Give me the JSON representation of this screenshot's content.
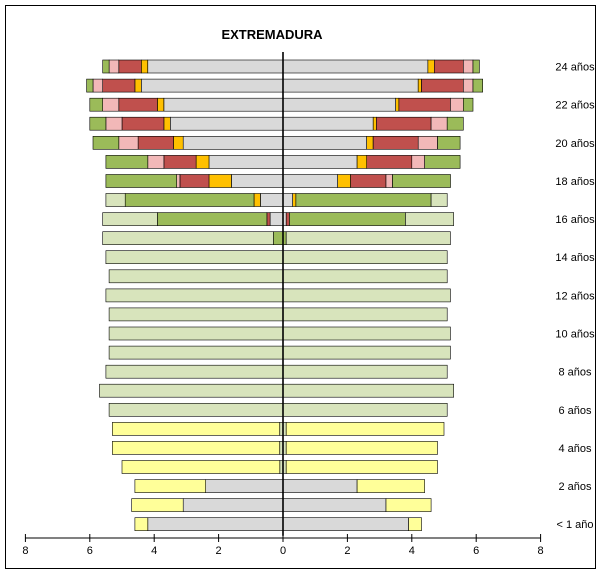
{
  "chart_data": {
    "type": "population_pyramid",
    "title": "EXTREMADURA",
    "x_ticks": [
      8,
      6,
      4,
      2,
      0,
      2,
      4,
      6,
      8
    ],
    "xlim": [
      -8,
      8
    ],
    "age_labels": [
      "24 años",
      "22 años",
      "20 años",
      "18 años",
      "16 años",
      "14 años",
      "12 años",
      "10 años",
      "8 años",
      "6 años",
      "4 años",
      "2 años",
      "< 1 año"
    ],
    "colors": {
      "gray": "#d9d9d9",
      "yellow": "#ffff99",
      "lightgreen": "#d8e4bc",
      "green": "#9bbb59",
      "orange": "#ffc000",
      "darkred": "#c0504d",
      "pink": "#f2b8b8"
    },
    "rows": [
      {
        "age": 24,
        "left": [
          [
            "gray",
            4.2
          ],
          [
            "orange",
            0.2
          ],
          [
            "darkred",
            0.7
          ],
          [
            "pink",
            0.3
          ],
          [
            "green",
            0.2
          ]
        ],
        "right": [
          [
            "gray",
            4.5
          ],
          [
            "orange",
            0.2
          ],
          [
            "darkred",
            0.9
          ],
          [
            "pink",
            0.3
          ],
          [
            "green",
            0.2
          ]
        ]
      },
      {
        "age": 23,
        "left": [
          [
            "gray",
            4.4
          ],
          [
            "orange",
            0.2
          ],
          [
            "darkred",
            1.0
          ],
          [
            "pink",
            0.3
          ],
          [
            "green",
            0.2
          ]
        ],
        "right": [
          [
            "gray",
            4.2
          ],
          [
            "orange",
            0.1
          ],
          [
            "darkred",
            1.3
          ],
          [
            "pink",
            0.3
          ],
          [
            "green",
            0.3
          ]
        ]
      },
      {
        "age": 22,
        "left": [
          [
            "gray",
            3.7
          ],
          [
            "orange",
            0.2
          ],
          [
            "darkred",
            1.2
          ],
          [
            "pink",
            0.5
          ],
          [
            "green",
            0.4
          ]
        ],
        "right": [
          [
            "gray",
            3.5
          ],
          [
            "orange",
            0.1
          ],
          [
            "darkred",
            1.6
          ],
          [
            "pink",
            0.4
          ],
          [
            "green",
            0.3
          ]
        ]
      },
      {
        "age": 21,
        "left": [
          [
            "gray",
            3.5
          ],
          [
            "orange",
            0.2
          ],
          [
            "darkred",
            1.3
          ],
          [
            "pink",
            0.5
          ],
          [
            "green",
            0.5
          ]
        ],
        "right": [
          [
            "gray",
            2.8
          ],
          [
            "orange",
            0.1
          ],
          [
            "darkred",
            1.7
          ],
          [
            "pink",
            0.5
          ],
          [
            "green",
            0.5
          ]
        ]
      },
      {
        "age": 20,
        "left": [
          [
            "gray",
            3.1
          ],
          [
            "orange",
            0.3
          ],
          [
            "darkred",
            1.1
          ],
          [
            "pink",
            0.6
          ],
          [
            "green",
            0.8
          ]
        ],
        "right": [
          [
            "gray",
            2.6
          ],
          [
            "orange",
            0.2
          ],
          [
            "darkred",
            1.4
          ],
          [
            "pink",
            0.6
          ],
          [
            "green",
            0.7
          ]
        ]
      },
      {
        "age": 19,
        "left": [
          [
            "gray",
            2.3
          ],
          [
            "orange",
            0.4
          ],
          [
            "darkred",
            1.0
          ],
          [
            "pink",
            0.5
          ],
          [
            "green",
            1.3
          ]
        ],
        "right": [
          [
            "gray",
            2.3
          ],
          [
            "orange",
            0.3
          ],
          [
            "darkred",
            1.4
          ],
          [
            "pink",
            0.4
          ],
          [
            "green",
            1.1
          ]
        ]
      },
      {
        "age": 18,
        "left": [
          [
            "gray",
            1.6
          ],
          [
            "orange",
            0.7
          ],
          [
            "darkred",
            0.9
          ],
          [
            "pink",
            0.1
          ],
          [
            "green",
            2.2
          ]
        ],
        "right": [
          [
            "gray",
            1.7
          ],
          [
            "orange",
            0.4
          ],
          [
            "darkred",
            1.1
          ],
          [
            "pink",
            0.2
          ],
          [
            "green",
            1.8
          ]
        ]
      },
      {
        "age": 17,
        "left": [
          [
            "gray",
            0.7
          ],
          [
            "orange",
            0.2
          ],
          [
            "green",
            4.0
          ],
          [
            "lightgreen",
            0.6
          ]
        ],
        "right": [
          [
            "gray",
            0.3
          ],
          [
            "orange",
            0.1
          ],
          [
            "green",
            4.2
          ],
          [
            "lightgreen",
            0.5
          ]
        ]
      },
      {
        "age": 16,
        "left": [
          [
            "gray",
            0.4
          ],
          [
            "darkred",
            0.1
          ],
          [
            "green",
            3.4
          ],
          [
            "lightgreen",
            1.7
          ]
        ],
        "right": [
          [
            "gray",
            0.1
          ],
          [
            "darkred",
            0.1
          ],
          [
            "green",
            3.6
          ],
          [
            "lightgreen",
            1.5
          ]
        ]
      },
      {
        "age": 15,
        "left": [
          [
            "green",
            0.3
          ],
          [
            "lightgreen",
            5.3
          ]
        ],
        "right": [
          [
            "green",
            0.1
          ],
          [
            "lightgreen",
            5.1
          ]
        ]
      },
      {
        "age": 14,
        "left": [
          [
            "lightgreen",
            5.5
          ]
        ],
        "right": [
          [
            "lightgreen",
            5.1
          ]
        ]
      },
      {
        "age": 13,
        "left": [
          [
            "lightgreen",
            5.4
          ]
        ],
        "right": [
          [
            "lightgreen",
            5.1
          ]
        ]
      },
      {
        "age": 12,
        "left": [
          [
            "lightgreen",
            5.5
          ]
        ],
        "right": [
          [
            "lightgreen",
            5.2
          ]
        ]
      },
      {
        "age": 11,
        "left": [
          [
            "lightgreen",
            5.4
          ]
        ],
        "right": [
          [
            "lightgreen",
            5.1
          ]
        ]
      },
      {
        "age": 10,
        "left": [
          [
            "lightgreen",
            5.4
          ]
        ],
        "right": [
          [
            "lightgreen",
            5.2
          ]
        ]
      },
      {
        "age": 9,
        "left": [
          [
            "lightgreen",
            5.4
          ]
        ],
        "right": [
          [
            "lightgreen",
            5.2
          ]
        ]
      },
      {
        "age": 8,
        "left": [
          [
            "lightgreen",
            5.5
          ]
        ],
        "right": [
          [
            "lightgreen",
            5.1
          ]
        ]
      },
      {
        "age": 7,
        "left": [
          [
            "lightgreen",
            5.7
          ]
        ],
        "right": [
          [
            "lightgreen",
            5.3
          ]
        ]
      },
      {
        "age": 6,
        "left": [
          [
            "lightgreen",
            5.4
          ]
        ],
        "right": [
          [
            "lightgreen",
            5.1
          ]
        ]
      },
      {
        "age": 5,
        "left": [
          [
            "lightgreen",
            0.1
          ],
          [
            "yellow",
            5.2
          ]
        ],
        "right": [
          [
            "lightgreen",
            0.1
          ],
          [
            "yellow",
            4.9
          ]
        ]
      },
      {
        "age": 4,
        "left": [
          [
            "lightgreen",
            0.1
          ],
          [
            "yellow",
            5.2
          ]
        ],
        "right": [
          [
            "lightgreen",
            0.1
          ],
          [
            "yellow",
            4.7
          ]
        ]
      },
      {
        "age": 3,
        "left": [
          [
            "lightgreen",
            0.1
          ],
          [
            "yellow",
            4.9
          ]
        ],
        "right": [
          [
            "lightgreen",
            0.1
          ],
          [
            "yellow",
            4.7
          ]
        ]
      },
      {
        "age": 2,
        "left": [
          [
            "gray",
            2.4
          ],
          [
            "yellow",
            2.2
          ]
        ],
        "right": [
          [
            "gray",
            2.3
          ],
          [
            "yellow",
            2.1
          ]
        ]
      },
      {
        "age": 1,
        "left": [
          [
            "gray",
            3.1
          ],
          [
            "yellow",
            1.6
          ]
        ],
        "right": [
          [
            "gray",
            3.2
          ],
          [
            "yellow",
            1.4
          ]
        ]
      },
      {
        "age": 0,
        "left": [
          [
            "gray",
            4.2
          ],
          [
            "yellow",
            0.4
          ]
        ],
        "right": [
          [
            "gray",
            3.9
          ],
          [
            "yellow",
            0.4
          ]
        ]
      }
    ]
  }
}
